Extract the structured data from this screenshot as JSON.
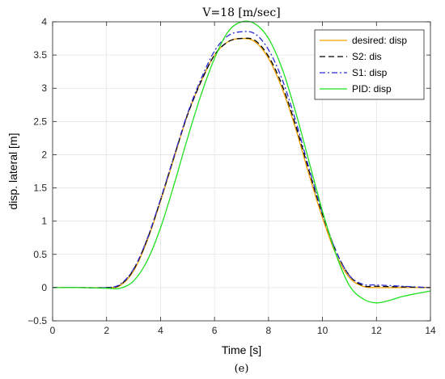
{
  "chart_data": {
    "type": "line",
    "title": "V=18 [m/sec]",
    "xlabel": "Time [s]",
    "ylabel": "disp. lateral [m]",
    "caption": "(e)",
    "xlim": [
      0,
      14
    ],
    "ylim": [
      -0.5,
      4
    ],
    "xticks": [
      0,
      2,
      4,
      6,
      8,
      10,
      12,
      14
    ],
    "xtick_labels": [
      "0",
      "2",
      "4",
      "6",
      "8",
      "10",
      "12",
      "14"
    ],
    "yticks": [
      -0.5,
      0,
      0.5,
      1,
      1.5,
      2,
      2.5,
      3,
      3.5,
      4
    ],
    "ytick_labels": [
      "−0.5",
      "0",
      "0.5",
      "1",
      "1.5",
      "2",
      "2.5",
      "3",
      "3.5",
      "4"
    ],
    "grid": true,
    "legend_position": "top-right",
    "series": [
      {
        "name": "desired: disp",
        "color": "#f0a000",
        "dash": "solid",
        "x": [
          0,
          1,
          2,
          2.5,
          3,
          3.5,
          4,
          4.5,
          5,
          5.5,
          6,
          6.5,
          7,
          7.5,
          8,
          8.5,
          9,
          9.5,
          10,
          10.5,
          11,
          11.5,
          12,
          13,
          14
        ],
        "y": [
          0,
          0,
          0,
          0.03,
          0.25,
          0.7,
          1.3,
          1.95,
          2.6,
          3.1,
          3.5,
          3.7,
          3.75,
          3.7,
          3.45,
          3.0,
          2.4,
          1.7,
          1.05,
          0.5,
          0.15,
          0.02,
          0,
          0,
          0
        ]
      },
      {
        "name": "S2: dis",
        "color": "#000000",
        "dash": "dashed",
        "x": [
          0,
          1,
          2,
          2.5,
          3,
          3.5,
          4,
          4.5,
          5,
          5.5,
          6,
          6.5,
          7,
          7.5,
          8,
          8.5,
          9,
          9.5,
          10,
          10.5,
          11,
          11.5,
          12,
          13,
          14
        ],
        "y": [
          0,
          0,
          0,
          0.04,
          0.27,
          0.72,
          1.32,
          1.97,
          2.6,
          3.1,
          3.5,
          3.7,
          3.75,
          3.72,
          3.48,
          3.05,
          2.45,
          1.76,
          1.1,
          0.55,
          0.18,
          0.03,
          0.02,
          0.01,
          0
        ]
      },
      {
        "name": "S1: disp",
        "color": "#2b2bd8",
        "dash": "dashdot",
        "x": [
          0,
          1,
          2,
          2.5,
          3,
          3.5,
          4,
          4.5,
          5,
          5.5,
          6,
          6.5,
          7,
          7.5,
          8,
          8.5,
          9,
          9.5,
          10,
          10.5,
          11,
          11.5,
          12,
          13,
          14
        ],
        "y": [
          0,
          0,
          0,
          0.05,
          0.28,
          0.73,
          1.33,
          1.98,
          2.62,
          3.14,
          3.56,
          3.79,
          3.85,
          3.82,
          3.58,
          3.14,
          2.52,
          1.8,
          1.12,
          0.55,
          0.18,
          0.05,
          0.04,
          0.02,
          0
        ]
      },
      {
        "name": "PID: disp",
        "color": "#1fe01f",
        "dash": "solid",
        "x": [
          0,
          1,
          2,
          2.5,
          3,
          3.5,
          4,
          4.5,
          5,
          5.5,
          6,
          6.5,
          7,
          7.5,
          8,
          8.5,
          9,
          9.5,
          10,
          10.5,
          11,
          11.5,
          12,
          12.5,
          13,
          14
        ],
        "y": [
          0,
          0,
          -0.01,
          -0.01,
          0.1,
          0.4,
          0.9,
          1.55,
          2.25,
          2.9,
          3.45,
          3.85,
          4.0,
          3.97,
          3.75,
          3.3,
          2.65,
          1.9,
          1.15,
          0.5,
          0.03,
          -0.17,
          -0.23,
          -0.19,
          -0.13,
          -0.05
        ]
      }
    ]
  }
}
